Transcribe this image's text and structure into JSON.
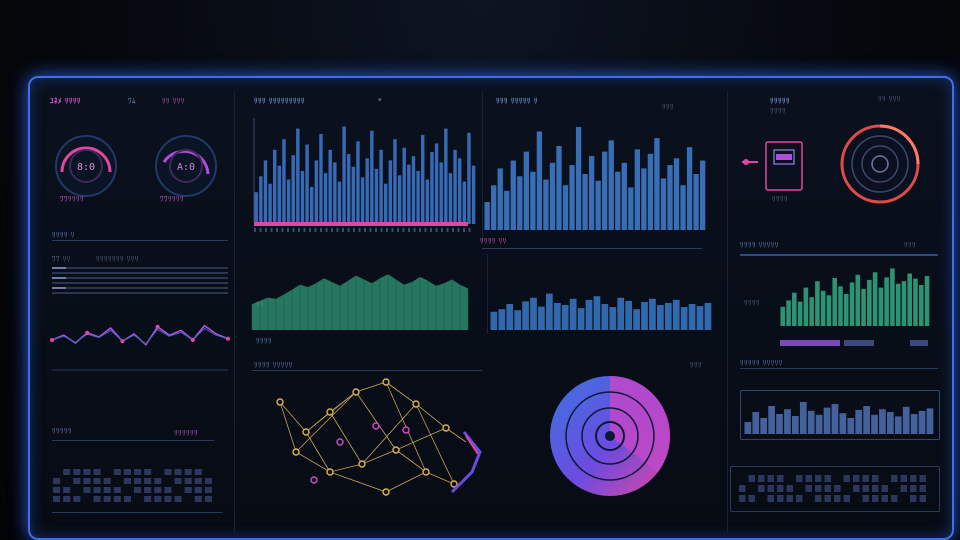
{
  "colors": {
    "frame_glow": "#3d6fe6",
    "bar_blue": "#3b74c9",
    "accent_pink": "#e0479e",
    "accent_violet": "#b24be0",
    "green": "#2f9b7a",
    "gauge_red": "#e14a4a"
  },
  "panels": {
    "left_top": {
      "title": "ﾕﾈﾒ ﾘﾘﾘﾘ",
      "tag1": "ﾜﾑ",
      "tag2": "ﾘﾘ ﾘﾘﾘ",
      "gauge_left_caption": "ﾜﾜﾘﾘﾘﾘ",
      "gauge_right_caption": "ﾜﾜﾘﾘﾘﾘ"
    },
    "left_mid": {
      "title": "ﾘﾘﾘﾘ ﾘ",
      "row_label": "ﾜﾜ ﾘﾘ",
      "row_value": "ﾘﾘﾘﾘﾘﾘﾘ ﾘﾘﾘ"
    },
    "left_bottom": {
      "title": "ﾘﾘﾘﾘﾘ",
      "title2": "ﾘﾘﾘﾘﾘﾘ"
    },
    "center_top": {
      "title": "ﾘﾘﾘ ﾘﾘﾘﾘﾘﾘﾘﾘﾘ",
      "footer": "ﾘﾘﾘﾘ ﾘﾘ"
    },
    "center_mid": {
      "label": "ﾘﾘ",
      "footer": "ﾘﾘﾘﾘ"
    },
    "center_bottom": {
      "title": "ﾘﾘﾘﾘ ﾘﾘﾘﾘﾘ"
    },
    "right_top": {
      "title": "ﾘﾘﾘﾘﾘ",
      "subtitle": "ﾘﾘﾘﾘ",
      "corner": "ﾘﾘ ﾘﾘﾘ",
      "caption": "ﾘﾘﾘﾘ"
    },
    "right_mid": {
      "title": "ﾘﾘﾘﾘ ﾘﾘﾘﾘﾘ",
      "corner": "ﾘﾘﾘ",
      "side": "ﾘﾘﾘﾘ"
    },
    "right_bottom": {
      "title": "ﾘﾘﾘﾘﾘ ﾘﾘﾘﾘﾘ"
    },
    "upper_center_right": {
      "title": "ﾘﾘﾘ ﾘﾘﾘﾘﾘ ﾘ",
      "corner": "ﾘﾘﾘ"
    },
    "mid_center_right": {
      "label": "ﾘﾘﾘ"
    }
  },
  "charts": {
    "bars_upper_left": [
      30,
      45,
      60,
      38,
      70,
      55,
      80,
      42,
      65,
      90,
      50,
      75,
      35,
      60,
      85,
      48,
      70,
      58,
      40,
      92,
      66,
      54,
      78,
      44,
      62,
      88,
      52,
      70,
      38,
      60,
      80,
      46,
      72,
      56,
      64,
      50,
      84,
      42,
      68,
      76,
      58,
      90,
      48,
      70,
      62,
      40,
      86,
      55
    ],
    "bars_upper_right": [
      25,
      40,
      55,
      35,
      62,
      48,
      70,
      52,
      88,
      45,
      60,
      75,
      40,
      58,
      92,
      50,
      66,
      44,
      70,
      80,
      52,
      60,
      38,
      72,
      55,
      68,
      82,
      46,
      58,
      64,
      40,
      74,
      50,
      62
    ],
    "area_green_mid": [
      40,
      45,
      50,
      48,
      55,
      62,
      70,
      66,
      72,
      80,
      74,
      68,
      76,
      84,
      78,
      72,
      80,
      86,
      78,
      70,
      74,
      82,
      76,
      68,
      72,
      78,
      70,
      64
    ],
    "bars_mid_right": [
      35,
      40,
      50,
      38,
      55,
      62,
      45,
      70,
      52,
      48,
      60,
      42,
      58,
      65,
      50,
      44,
      62,
      56,
      40,
      54,
      60,
      48,
      52,
      58,
      44,
      50,
      46,
      52
    ],
    "bars_green_right": [
      30,
      40,
      52,
      38,
      60,
      45,
      70,
      55,
      48,
      75,
      62,
      50,
      68,
      80,
      58,
      72,
      84,
      60,
      76,
      90,
      66,
      70,
      82,
      74,
      64,
      78
    ],
    "bars_small_bottom_right": [
      30,
      55,
      40,
      70,
      50,
      62,
      45,
      80,
      58,
      48,
      66,
      75,
      52,
      40,
      60,
      70,
      48,
      62,
      55,
      44,
      68,
      50,
      58,
      64
    ],
    "line_pink_left": [
      50,
      58,
      45,
      62,
      55,
      70,
      48,
      60,
      42,
      72,
      58,
      66,
      50,
      74,
      60,
      52
    ],
    "pie_gradient": {
      "segments": [
        0.62,
        0.38
      ]
    }
  }
}
